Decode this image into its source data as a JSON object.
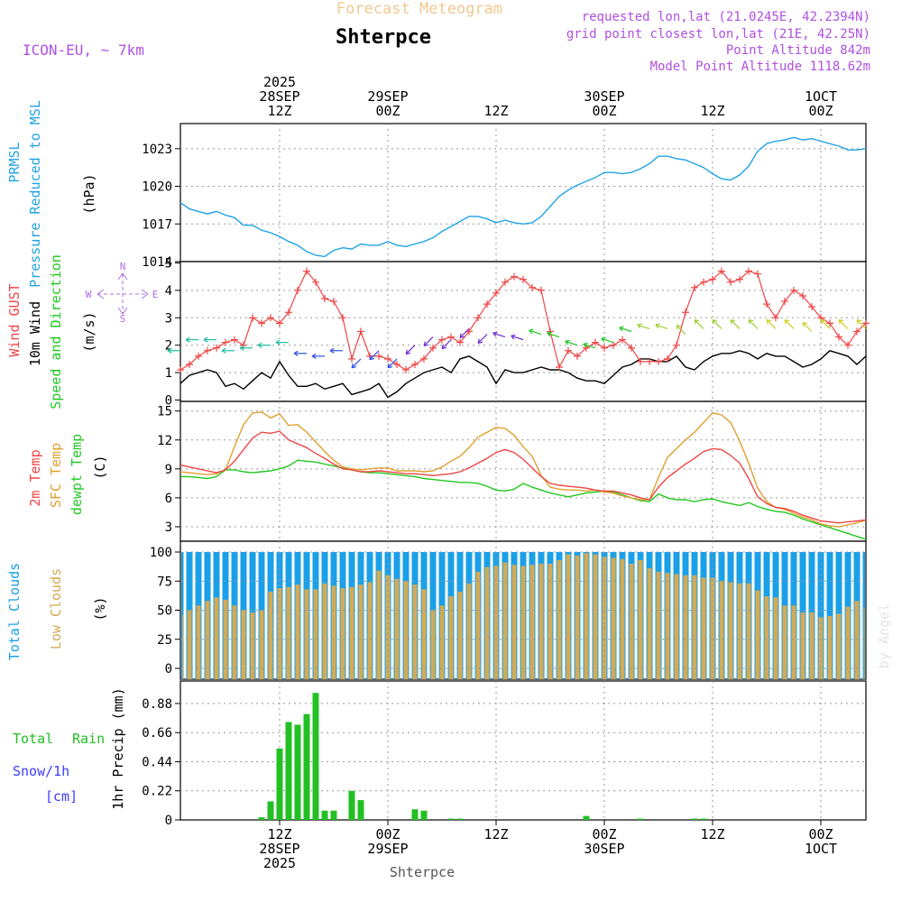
{
  "header": {
    "title": "Forecast Meteogram",
    "location": "Shterpce",
    "model": "ICON-EU, ~ 7km",
    "requested": "requested lon,lat (21.0245E, 42.2394N)",
    "gridpoint": "grid point closest lon,lat (21E, 42.25N)",
    "point_altitude": "Point Altitude 842m",
    "model_altitude": "Model Point Altitude 1118.62m",
    "credit": "by Angel",
    "footer_location": "Shterpce"
  },
  "colors": {
    "pressure": "#1fa3e6",
    "gust": "#f04545",
    "wind": "#000000",
    "dir_label": "#20c820",
    "t2m": "#f04545",
    "tsfc": "#e0a030",
    "dewpt": "#20c820",
    "total_clouds": "#1aa0e8",
    "low_clouds": "#d4aa55",
    "rain": "#22c022",
    "snow": "#3c3cff",
    "compass": "#b070e0",
    "info": "#b050e0",
    "title_color": "#f0c890"
  },
  "chart_data": {
    "type": "meteogram",
    "time_axis": {
      "hours_span": 66,
      "start": "2025-09-28 01Z",
      "top_labels": [
        {
          "hour": 11,
          "lines": [
            "2025",
            "28SEP",
            "12Z"
          ]
        },
        {
          "hour": 23,
          "lines": [
            "29SEP",
            "00Z"
          ]
        },
        {
          "hour": 35,
          "lines": [
            "12Z"
          ]
        },
        {
          "hour": 47,
          "lines": [
            "30SEP",
            "00Z"
          ]
        },
        {
          "hour": 59,
          "lines": [
            "12Z"
          ]
        },
        {
          "hour": 71,
          "lines": [
            "1OCT",
            "00Z"
          ]
        }
      ],
      "bottom_labels": [
        {
          "hour": 11,
          "lines": [
            "12Z",
            "28SEP",
            "2025"
          ]
        },
        {
          "hour": 23,
          "lines": [
            "00Z",
            "29SEP"
          ]
        },
        {
          "hour": 35,
          "lines": [
            "12Z"
          ]
        },
        {
          "hour": 47,
          "lines": [
            "00Z",
            "30SEP"
          ]
        },
        {
          "hour": 59,
          "lines": [
            "12Z"
          ]
        },
        {
          "hour": 71,
          "lines": [
            "00Z",
            "1OCT"
          ]
        }
      ]
    },
    "pressure": {
      "labels": [
        "PRMSL",
        "Pressure Reduced to MSL",
        "(hPa)"
      ],
      "ylim": [
        1014,
        1025
      ],
      "ticks": [
        1014,
        1017,
        1020,
        1023
      ],
      "series": [
        {
          "name": "PRMSL",
          "hours": [
            0,
            1,
            2,
            3,
            4,
            5,
            6,
            7,
            8,
            9,
            10,
            11,
            12,
            13,
            14,
            15,
            16,
            17,
            18,
            19,
            20,
            21,
            22,
            23,
            24,
            25,
            26,
            27,
            28,
            29,
            30,
            31,
            32,
            33,
            34,
            35,
            36,
            37,
            38,
            39,
            40,
            41,
            42,
            43,
            44,
            45,
            46,
            47,
            48,
            49,
            50,
            51,
            52,
            53,
            54,
            55,
            56,
            57,
            58,
            59,
            60,
            61,
            62,
            63,
            64,
            65,
            66,
            67,
            68,
            69,
            70,
            71,
            72,
            73,
            74,
            75,
            76
          ],
          "values": [
            1018.7,
            1018.2,
            1018.0,
            1017.8,
            1018.0,
            1017.7,
            1017.5,
            1016.9,
            1016.9,
            1016.5,
            1016.3,
            1016.0,
            1015.6,
            1015.3,
            1014.8,
            1014.5,
            1014.4,
            1014.9,
            1015.1,
            1015.0,
            1015.4,
            1015.3,
            1015.3,
            1015.6,
            1015.3,
            1015.2,
            1015.4,
            1015.6,
            1015.9,
            1016.4,
            1016.8,
            1017.2,
            1017.6,
            1017.6,
            1017.4,
            1017.1,
            1017.3,
            1017.1,
            1017.0,
            1017.1,
            1017.6,
            1018.4,
            1019.2,
            1019.7,
            1020.1,
            1020.4,
            1020.7,
            1021.1,
            1021.1,
            1021.0,
            1021.1,
            1021.4,
            1021.8,
            1022.4,
            1022.4,
            1022.2,
            1022.1,
            1021.8,
            1021.5,
            1021.0,
            1020.6,
            1020.5,
            1020.9,
            1021.6,
            1022.8,
            1023.4,
            1023.6,
            1023.7,
            1023.9,
            1023.7,
            1023.8,
            1023.6,
            1023.4,
            1023.2,
            1022.9,
            1022.9,
            1023.0
          ]
        }
      ]
    },
    "wind": {
      "labels": [
        "Wind GUST",
        "10m Wind",
        "Speed and Direction",
        "(m/s)"
      ],
      "compass_labels": {
        "north": "N",
        "south": "S",
        "east": "E",
        "west": "W"
      },
      "ylim": [
        0,
        5
      ],
      "ticks": [
        0,
        1,
        2,
        3,
        4,
        5
      ],
      "hours": [
        0,
        1,
        2,
        3,
        4,
        5,
        6,
        7,
        8,
        9,
        10,
        11,
        12,
        13,
        14,
        15,
        16,
        17,
        18,
        19,
        20,
        21,
        22,
        23,
        24,
        25,
        26,
        27,
        28,
        29,
        30,
        31,
        32,
        33,
        34,
        35,
        36,
        37,
        38,
        39,
        40,
        41,
        42,
        43,
        44,
        45,
        46,
        47,
        48,
        49,
        50,
        51,
        52,
        53,
        54,
        55,
        56,
        57,
        58,
        59,
        60,
        61,
        62,
        63,
        64,
        65,
        66,
        67,
        68,
        69,
        70,
        71,
        72,
        73,
        74,
        75,
        76
      ],
      "gust": [
        1.1,
        1.3,
        1.6,
        1.8,
        1.9,
        2.1,
        2.2,
        2.0,
        3.0,
        2.8,
        3.0,
        2.8,
        3.2,
        4.0,
        4.7,
        4.3,
        3.7,
        3.6,
        3.0,
        1.5,
        2.5,
        1.6,
        1.6,
        1.5,
        1.3,
        1.1,
        1.3,
        1.5,
        1.9,
        2.2,
        2.3,
        2.1,
        2.5,
        3.0,
        3.5,
        3.9,
        4.3,
        4.5,
        4.4,
        4.1,
        4.0,
        2.5,
        1.2,
        1.8,
        1.6,
        1.9,
        2.1,
        1.9,
        2.0,
        2.2,
        1.9,
        1.4,
        1.4,
        1.4,
        1.5,
        2.0,
        3.2,
        4.1,
        4.3,
        4.4,
        4.7,
        4.3,
        4.4,
        4.7,
        4.6,
        3.5,
        3.0,
        3.6,
        4.0,
        3.8,
        3.4,
        3.0,
        2.8,
        2.3,
        2.0,
        2.5,
        2.8
      ],
      "speed": [
        0.6,
        0.9,
        1.0,
        1.1,
        1.0,
        0.5,
        0.6,
        0.4,
        0.7,
        1.0,
        0.8,
        1.4,
        0.9,
        0.5,
        0.5,
        0.6,
        0.4,
        0.5,
        0.6,
        0.2,
        0.3,
        0.4,
        0.6,
        0.1,
        0.3,
        0.6,
        0.8,
        1.0,
        1.1,
        1.2,
        1.0,
        1.5,
        1.6,
        1.4,
        1.2,
        0.6,
        1.1,
        1.0,
        1.0,
        1.1,
        1.2,
        1.1,
        1.1,
        1.0,
        0.8,
        0.7,
        0.7,
        0.6,
        0.9,
        1.2,
        1.3,
        1.5,
        1.5,
        1.4,
        1.4,
        1.6,
        1.2,
        1.1,
        1.4,
        1.6,
        1.7,
        1.7,
        1.8,
        1.7,
        1.5,
        1.7,
        1.6,
        1.6,
        1.4,
        1.2,
        1.3,
        1.5,
        1.8,
        1.7,
        1.6,
        1.3,
        1.6
      ]
    },
    "temperature": {
      "labels": [
        "2m Temp",
        "SFC Temp",
        "dewpt Temp",
        "(C)"
      ],
      "ylim": [
        1.5,
        16
      ],
      "ticks": [
        3,
        6,
        9,
        12,
        15
      ],
      "hours": [
        0,
        1,
        2,
        3,
        4,
        5,
        6,
        7,
        8,
        9,
        10,
        11,
        12,
        13,
        14,
        15,
        16,
        17,
        18,
        19,
        20,
        21,
        22,
        23,
        24,
        25,
        26,
        27,
        28,
        29,
        30,
        31,
        32,
        33,
        34,
        35,
        36,
        37,
        38,
        39,
        40,
        41,
        42,
        43,
        44,
        45,
        46,
        47,
        48,
        49,
        50,
        51,
        52,
        53,
        54,
        55,
        56,
        57,
        58,
        59,
        60,
        61,
        62,
        63,
        64,
        65,
        66,
        67,
        68,
        69,
        70,
        71,
        72,
        73,
        74,
        75,
        76
      ],
      "t2m": [
        9.4,
        9.2,
        9.0,
        8.8,
        8.6,
        8.9,
        9.8,
        11.0,
        12.2,
        12.8,
        12.7,
        12.9,
        12.0,
        11.6,
        11.2,
        10.6,
        10.1,
        9.5,
        9.0,
        8.9,
        8.7,
        8.7,
        8.8,
        8.7,
        8.6,
        8.5,
        8.5,
        8.4,
        8.3,
        8.4,
        8.5,
        8.7,
        9.1,
        9.6,
        10.1,
        10.7,
        11.0,
        10.7,
        10.0,
        9.1,
        8.2,
        7.5,
        7.3,
        7.2,
        7.1,
        7.0,
        6.8,
        6.7,
        6.7,
        6.5,
        6.3,
        6.0,
        5.8,
        7.1,
        8.1,
        8.8,
        9.5,
        10.1,
        10.8,
        11.1,
        11.0,
        10.4,
        9.6,
        8.0,
        6.1,
        5.4,
        5.0,
        4.9,
        4.6,
        4.2,
        3.9,
        3.6,
        3.5,
        3.4,
        3.5,
        3.6,
        3.7
      ],
      "tsfc": [
        8.7,
        8.6,
        8.5,
        8.4,
        8.5,
        8.9,
        11.3,
        13.6,
        14.8,
        14.9,
        14.3,
        14.7,
        13.5,
        13.6,
        12.8,
        11.8,
        10.8,
        9.9,
        9.2,
        9.0,
        8.9,
        9.0,
        9.1,
        9.1,
        8.8,
        8.8,
        8.8,
        8.7,
        8.8,
        9.2,
        9.8,
        10.3,
        11.2,
        12.3,
        12.8,
        13.3,
        13.2,
        12.5,
        11.3,
        10.3,
        8.3,
        7.1,
        6.9,
        6.8,
        6.8,
        6.7,
        6.8,
        6.6,
        6.5,
        6.2,
        6.0,
        5.8,
        5.8,
        8.1,
        10.2,
        11.1,
        12.0,
        12.8,
        13.8,
        14.8,
        14.6,
        13.8,
        11.9,
        9.6,
        7.0,
        5.6,
        5.0,
        4.8,
        4.4,
        4.0,
        3.7,
        3.3,
        3.1,
        3.0,
        3.2,
        3.4,
        3.7
      ],
      "dewpt": [
        8.2,
        8.2,
        8.1,
        8.0,
        8.2,
        8.9,
        8.9,
        8.7,
        8.6,
        8.7,
        8.8,
        9.0,
        9.3,
        9.9,
        9.8,
        9.7,
        9.5,
        9.3,
        9.1,
        8.9,
        8.7,
        8.6,
        8.6,
        8.5,
        8.4,
        8.3,
        8.2,
        8.0,
        7.9,
        7.8,
        7.7,
        7.6,
        7.6,
        7.5,
        7.2,
        6.8,
        6.7,
        6.9,
        7.5,
        7.1,
        6.8,
        6.5,
        6.3,
        6.1,
        6.3,
        6.5,
        6.6,
        6.7,
        6.6,
        6.3,
        6.0,
        5.7,
        5.6,
        6.4,
        6.0,
        5.8,
        5.8,
        5.6,
        5.8,
        5.9,
        5.6,
        5.4,
        5.2,
        5.5,
        5.1,
        4.8,
        4.6,
        4.5,
        4.2,
        3.8,
        3.5,
        3.2,
        2.9,
        2.6,
        2.3,
        2.0,
        1.7
      ]
    },
    "clouds": {
      "labels": [
        "Total Clouds",
        "Low Clouds",
        "(%)"
      ],
      "ylim": [
        0,
        100
      ],
      "ticks": [
        0,
        25,
        50,
        75,
        100
      ],
      "hours": [
        0,
        1,
        2,
        3,
        4,
        5,
        6,
        7,
        8,
        9,
        10,
        11,
        12,
        13,
        14,
        15,
        16,
        17,
        18,
        19,
        20,
        21,
        22,
        23,
        24,
        25,
        26,
        27,
        28,
        29,
        30,
        31,
        32,
        33,
        34,
        35,
        36,
        37,
        38,
        39,
        40,
        41,
        42,
        43,
        44,
        45,
        46,
        47,
        48,
        49,
        50,
        51,
        52,
        53,
        54,
        55,
        56,
        57,
        58,
        59,
        60,
        61,
        62,
        63,
        64,
        65,
        66,
        67,
        68,
        69,
        70,
        71,
        72,
        73,
        74,
        75,
        76
      ],
      "total": [
        100,
        100,
        100,
        100,
        100,
        100,
        100,
        100,
        100,
        100,
        100,
        100,
        100,
        100,
        100,
        100,
        100,
        100,
        100,
        100,
        100,
        100,
        100,
        100,
        100,
        100,
        100,
        100,
        100,
        100,
        100,
        100,
        100,
        100,
        100,
        100,
        100,
        100,
        100,
        100,
        100,
        100,
        100,
        100,
        100,
        100,
        100,
        100,
        100,
        100,
        100,
        100,
        100,
        100,
        100,
        100,
        100,
        100,
        100,
        100,
        100,
        100,
        100,
        100,
        100,
        100,
        100,
        100,
        100,
        100,
        100,
        100,
        100,
        100,
        100,
        100,
        100
      ],
      "low": [
        46,
        50,
        54,
        58,
        61,
        59,
        54,
        50,
        48,
        50,
        66,
        69,
        70,
        72,
        68,
        68,
        73,
        71,
        69,
        70,
        72,
        74,
        84,
        80,
        77,
        75,
        72,
        68,
        50,
        54,
        62,
        66,
        73,
        83,
        87,
        88,
        91,
        89,
        88,
        89,
        90,
        90,
        93,
        98,
        97,
        99,
        98,
        96,
        95,
        94,
        90,
        93,
        86,
        83,
        82,
        81,
        80,
        80,
        78,
        78,
        75,
        74,
        73,
        73,
        67,
        62,
        61,
        54,
        54,
        48,
        48,
        44,
        45,
        47,
        53,
        58,
        52
      ]
    },
    "precip": {
      "labels": [
        "Total",
        "Rain",
        "Snow/1h",
        "[cm]",
        "1hr Precip (mm)"
      ],
      "ylim": [
        0,
        1.05
      ],
      "ticks": [
        0,
        0.22,
        0.44,
        0.66,
        0.88
      ],
      "hours": [
        0,
        1,
        2,
        3,
        4,
        5,
        6,
        7,
        8,
        9,
        10,
        11,
        12,
        13,
        14,
        15,
        16,
        17,
        18,
        19,
        20,
        21,
        22,
        23,
        24,
        25,
        26,
        27,
        28,
        29,
        30,
        31,
        32,
        33,
        34,
        35,
        36,
        37,
        38,
        39,
        40,
        41,
        42,
        43,
        44,
        45,
        46,
        47,
        48,
        49,
        50,
        51,
        52,
        53,
        54,
        55,
        56,
        57,
        58,
        59,
        60,
        61,
        62,
        63,
        64,
        65,
        66,
        67,
        68,
        69,
        70,
        71,
        72,
        73,
        74,
        75,
        76
      ],
      "rain": [
        0,
        0,
        0,
        0,
        0,
        0,
        0,
        0,
        0,
        0.02,
        0.14,
        0.54,
        0.74,
        0.72,
        0.8,
        0.96,
        0.07,
        0.07,
        0,
        0.22,
        0.15,
        0,
        0,
        0,
        0,
        0,
        0.08,
        0.07,
        0,
        0,
        0.01,
        0.01,
        0,
        0,
        0,
        0,
        0,
        0,
        0,
        0,
        0,
        0,
        0,
        0,
        0,
        0.03,
        0,
        0,
        0,
        0,
        0,
        0.01,
        0,
        0,
        0,
        0,
        0,
        0.01,
        0.01,
        0,
        0,
        0,
        0,
        0,
        0,
        0,
        0,
        0,
        0,
        0,
        0,
        0,
        0,
        0,
        0,
        0,
        0
      ],
      "snow": [
        0,
        0,
        0,
        0,
        0,
        0,
        0,
        0,
        0,
        0,
        0,
        0,
        0,
        0,
        0,
        0,
        0,
        0,
        0,
        0,
        0,
        0,
        0,
        0,
        0,
        0,
        0,
        0,
        0,
        0,
        0,
        0,
        0,
        0,
        0,
        0,
        0,
        0,
        0,
        0,
        0,
        0,
        0,
        0,
        0,
        0,
        0,
        0,
        0,
        0,
        0,
        0,
        0,
        0,
        0,
        0,
        0,
        0,
        0,
        0,
        0,
        0,
        0,
        0,
        0,
        0,
        0,
        0,
        0,
        0,
        0,
        0,
        0,
        0,
        0,
        0,
        0
      ]
    }
  }
}
